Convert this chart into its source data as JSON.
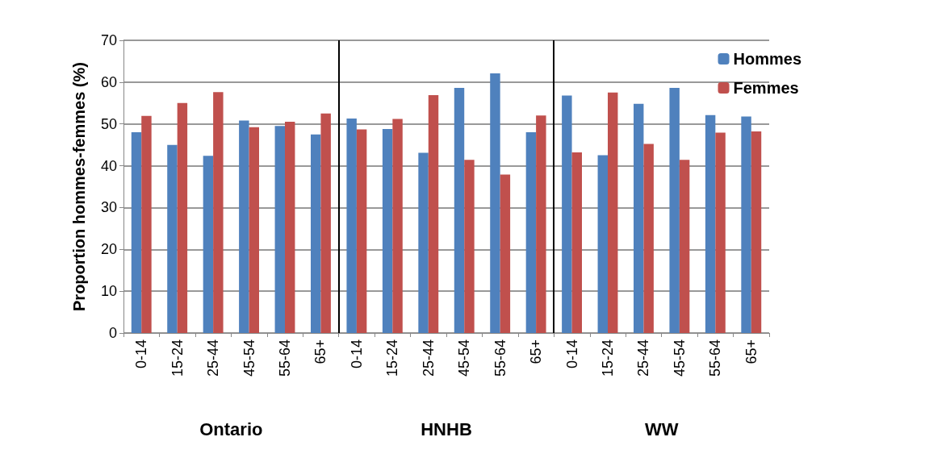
{
  "chart_data": {
    "type": "bar",
    "ylabel": "Proportion hommes-femmes (%)",
    "categories": [
      "0-14",
      "15-24",
      "25-44",
      "45-54",
      "55-64",
      "65+",
      "0-14",
      "15-24",
      "25-44",
      "45-54",
      "55-64",
      "65+",
      "0-14",
      "15-24",
      "25-44",
      "45-54",
      "55-64",
      "65+"
    ],
    "series": [
      {
        "name": "Hommes",
        "color": "#4f81bd",
        "values": [
          48,
          45,
          42.4,
          50.8,
          49.5,
          47.5,
          51.3,
          48.8,
          43.1,
          58.6,
          62.1,
          48,
          56.8,
          42.5,
          54.8,
          58.6,
          52.1,
          51.8
        ]
      },
      {
        "name": "Femmes",
        "color": "#c0504d",
        "values": [
          51.9,
          55,
          57.6,
          49.2,
          50.5,
          52.5,
          48.7,
          51.2,
          56.9,
          41.4,
          37.9,
          52,
          43.2,
          57.5,
          45.2,
          41.4,
          47.9,
          48.2
        ]
      }
    ],
    "ylim": [
      0,
      70
    ],
    "yticks": [
      0,
      10,
      20,
      30,
      40,
      50,
      60,
      70
    ],
    "grid": "y",
    "legend": "top right",
    "annotations": [
      "Ontario",
      "HNHB",
      "WW"
    ]
  }
}
